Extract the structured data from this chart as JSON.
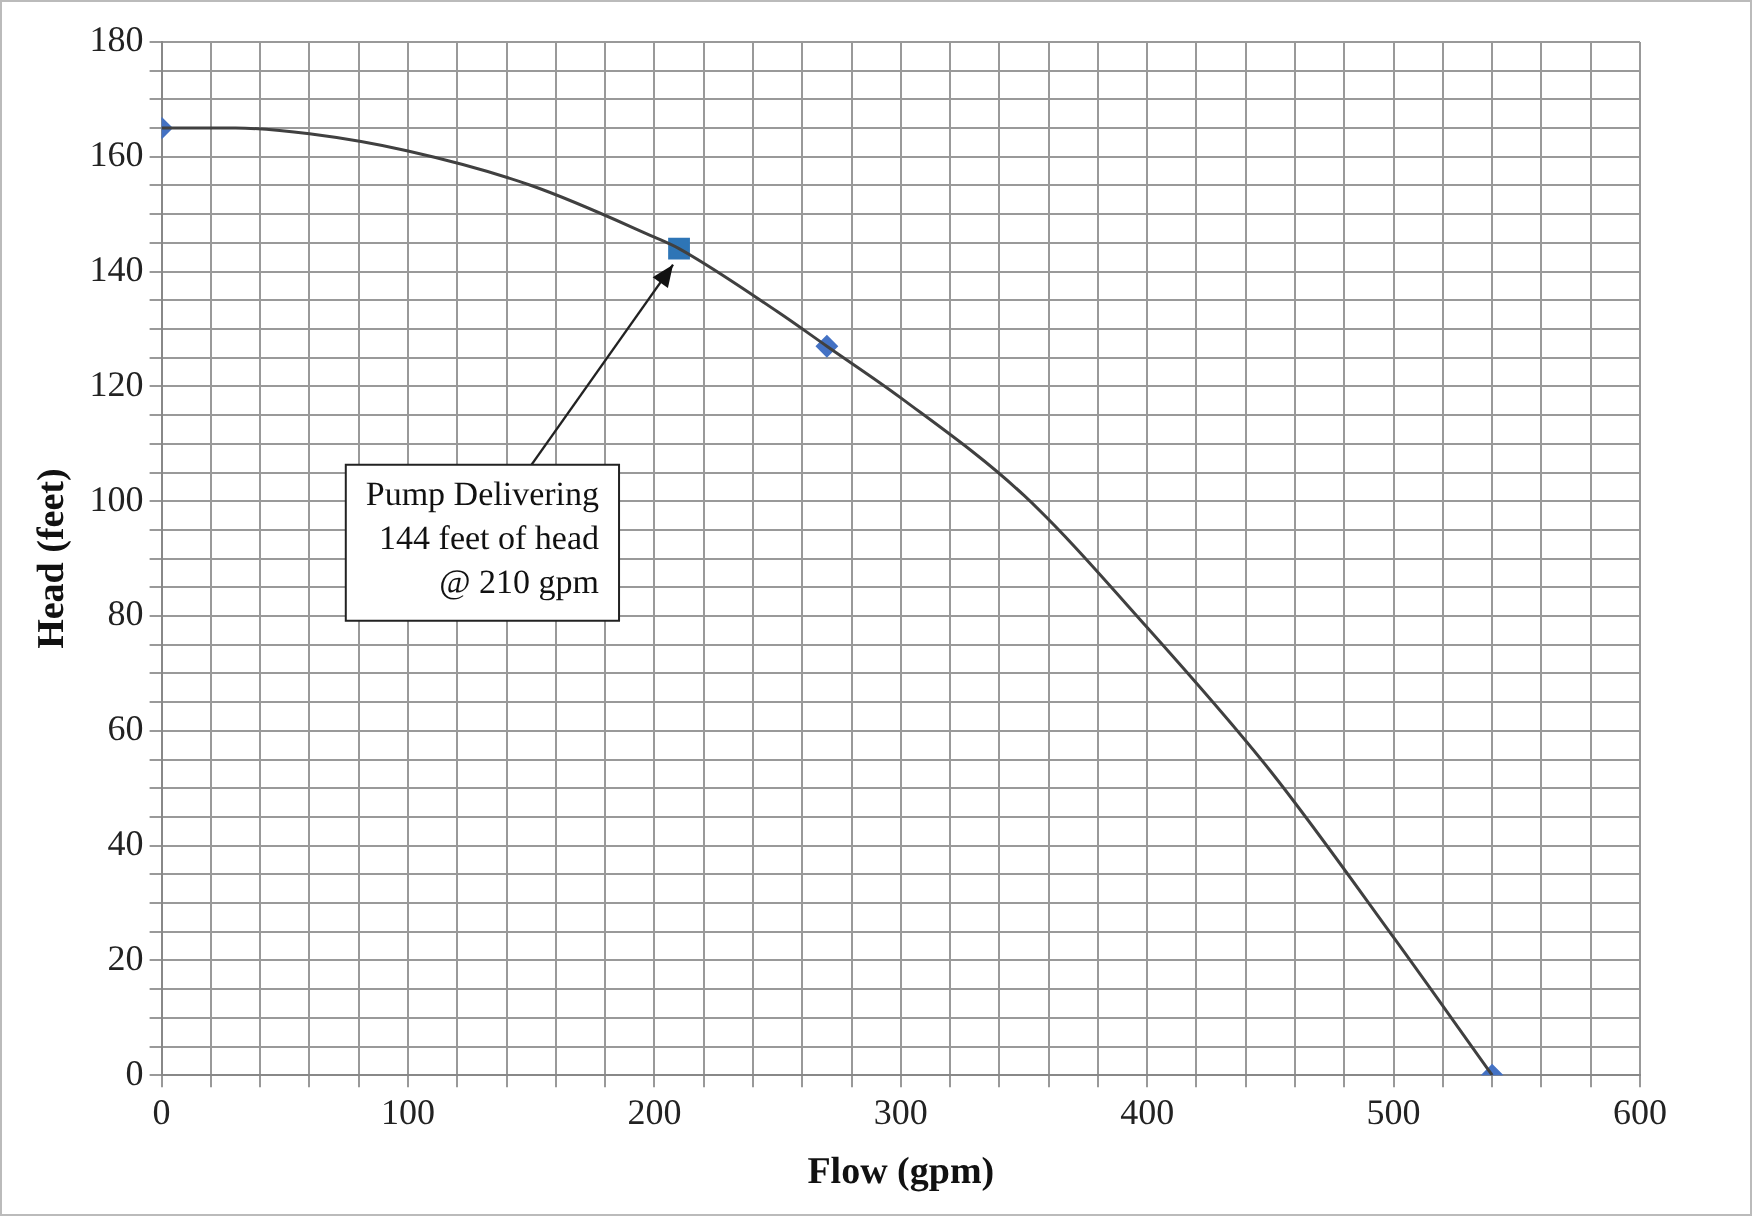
{
  "chart_data": {
    "type": "scatter",
    "xlabel": "Flow (gpm)",
    "ylabel": "Head (feet)",
    "xlim": [
      0,
      600
    ],
    "xticks": [
      0,
      {
        "value": 20,
        "label": null
      },
      {
        "value": 40,
        "label": null
      },
      {
        "value": 60,
        "label": null
      },
      {
        "value": 80,
        "label": null
      },
      100,
      {
        "value": 120,
        "label": null
      },
      {
        "value": 140,
        "label": null
      },
      {
        "value": 160,
        "label": null
      },
      {
        "value": 180,
        "label": null
      },
      200,
      {
        "value": 220,
        "label": null
      },
      {
        "value": 240,
        "label": null
      },
      {
        "value": 260,
        "label": null
      },
      {
        "value": 280,
        "label": null
      },
      300,
      {
        "value": 320,
        "label": null
      },
      {
        "value": 340,
        "label": null
      },
      {
        "value": 360,
        "label": null
      },
      {
        "value": 380,
        "label": null
      },
      400,
      {
        "value": 420,
        "label": null
      },
      {
        "value": 440,
        "label": null
      },
      {
        "value": 460,
        "label": null
      },
      {
        "value": 480,
        "label": null
      },
      500,
      {
        "value": 520,
        "label": null
      },
      {
        "value": 540,
        "label": null
      },
      {
        "value": 560,
        "label": null
      },
      {
        "value": 580,
        "label": null
      },
      600
    ],
    "ylim": [
      0,
      180
    ],
    "yticks": [
      0,
      {
        "value": 5,
        "label": null
      },
      {
        "value": 10,
        "label": null
      },
      {
        "value": 15,
        "label": null
      },
      20,
      {
        "value": 25,
        "label": null
      },
      {
        "value": 30,
        "label": null
      },
      {
        "value": 35,
        "label": null
      },
      40,
      {
        "value": 45,
        "label": null
      },
      {
        "value": 50,
        "label": null
      },
      {
        "value": 55,
        "label": null
      },
      60,
      {
        "value": 65,
        "label": null
      },
      {
        "value": 70,
        "label": null
      },
      {
        "value": 75,
        "label": null
      },
      80,
      {
        "value": 85,
        "label": null
      },
      {
        "value": 90,
        "label": null
      },
      {
        "value": 95,
        "label": null
      },
      100,
      {
        "value": 105,
        "label": null
      },
      {
        "value": 110,
        "label": null
      },
      {
        "value": 115,
        "label": null
      },
      120,
      {
        "value": 125,
        "label": null
      },
      {
        "value": 130,
        "label": null
      },
      {
        "value": 135,
        "label": null
      },
      140,
      {
        "value": 145,
        "label": null
      },
      {
        "value": 150,
        "label": null
      },
      {
        "value": 155,
        "label": null
      },
      160,
      {
        "value": 165,
        "label": null
      },
      {
        "value": 170,
        "label": null
      },
      {
        "value": 175,
        "label": null
      },
      180
    ],
    "grid": true,
    "legend": false,
    "series": [
      {
        "type": "line",
        "color": "#404040",
        "marker": "none",
        "x": [
          0,
          30,
          60,
          100,
          150,
          200,
          210,
          250,
          270,
          300,
          350,
          400,
          450,
          500,
          540
        ],
        "values": [
          165,
          165,
          164,
          161,
          155,
          146,
          144,
          133,
          127,
          118,
          101,
          78,
          53,
          24,
          0
        ]
      },
      {
        "type": "scatter",
        "color": "#4472c4",
        "marker": "diamond",
        "x": [
          0,
          270,
          540
        ],
        "values": [
          165,
          127,
          0
        ]
      },
      {
        "type": "scatter",
        "color": "#2e75b6",
        "marker": "square",
        "x": [
          210
        ],
        "values": [
          144
        ]
      }
    ],
    "annotations": [
      {
        "text": "Pump Delivering\n144 feet of head\n@ 210 gpm",
        "x": 210,
        "y": 144
      }
    ]
  }
}
